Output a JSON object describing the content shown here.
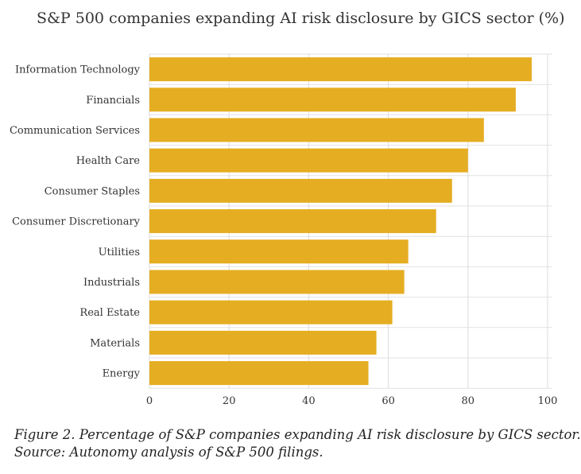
{
  "chart_data": {
    "type": "bar",
    "orientation": "horizontal",
    "title": "S&P 500 companies expanding AI risk disclosure by GICS sector (%)",
    "categories": [
      "Information Technology",
      "Financials",
      "Communication Services",
      "Health Care",
      "Consumer Staples",
      "Consumer Discretionary",
      "Utilities",
      "Industrials",
      "Real Estate",
      "Materials",
      "Energy"
    ],
    "values": [
      96,
      92,
      84,
      80,
      76,
      72,
      65,
      64,
      61,
      57,
      55
    ],
    "xlim": [
      0,
      100
    ],
    "xticks": [
      "0",
      "20",
      "40",
      "60",
      "80",
      "100"
    ],
    "xlabel": "",
    "ylabel": "",
    "grid": true,
    "bar_color": "#E5AD22"
  },
  "caption": {
    "line1": "Figure 2. Percentage of S&P companies expanding AI risk disclosure by GICS sector.",
    "line2": "Source: Autonomy analysis of S&P 500 filings."
  }
}
